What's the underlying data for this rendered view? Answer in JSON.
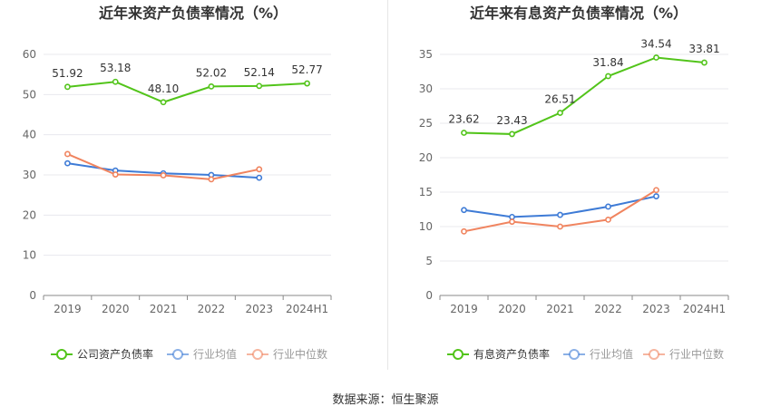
{
  "source_text": "数据来源：恒生聚源",
  "chart_data": [
    {
      "type": "line",
      "title": "近年来资产负债率情况（%）",
      "categories": [
        "2019",
        "2020",
        "2021",
        "2022",
        "2023",
        "2024H1"
      ],
      "ylim": [
        0,
        60
      ],
      "yticks": [
        0,
        10,
        20,
        30,
        40,
        50,
        60
      ],
      "grid": true,
      "legend_position": "bottom",
      "series": [
        {
          "name": "公司资产负债率",
          "color": "#52c41a",
          "values": [
            51.92,
            53.18,
            48.1,
            52.02,
            52.14,
            52.77
          ],
          "labels": [
            "51.92",
            "53.18",
            "48.10",
            "52.02",
            "52.14",
            "52.77"
          ]
        },
        {
          "name": "行业均值",
          "color": "#3e7bd6",
          "values": [
            32.9,
            31.1,
            30.4,
            30.0,
            29.3,
            null
          ]
        },
        {
          "name": "行业中位数",
          "color": "#f0845f",
          "values": [
            35.2,
            30.1,
            29.9,
            28.9,
            31.4,
            null
          ]
        }
      ]
    },
    {
      "type": "line",
      "title": "近年来有息资产负债率情况（%）",
      "categories": [
        "2019",
        "2020",
        "2021",
        "2022",
        "2023",
        "2024H1"
      ],
      "ylim": [
        0,
        35
      ],
      "yticks": [
        0,
        5,
        10,
        15,
        20,
        25,
        30,
        35
      ],
      "grid": true,
      "legend_position": "bottom",
      "series": [
        {
          "name": "有息资产负债率",
          "color": "#52c41a",
          "values": [
            23.62,
            23.43,
            26.51,
            31.84,
            34.54,
            33.81
          ],
          "labels": [
            "23.62",
            "23.43",
            "26.51",
            "31.84",
            "34.54",
            "33.81"
          ]
        },
        {
          "name": "行业均值",
          "color": "#3e7bd6",
          "values": [
            12.4,
            11.4,
            11.7,
            12.9,
            14.4,
            null
          ]
        },
        {
          "name": "行业中位数",
          "color": "#f0845f",
          "values": [
            9.3,
            10.7,
            10.0,
            11.0,
            15.3,
            null
          ]
        }
      ]
    }
  ]
}
